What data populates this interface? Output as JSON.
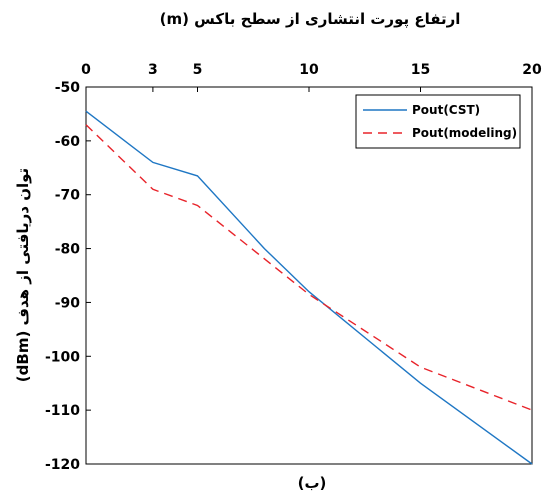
{
  "chart_data": {
    "type": "line",
    "xlabel": "ارتفاع پورت انتشاری از سطح باکس (m)",
    "ylabel": "توان دریافتی از هدف (dBm)",
    "caption": "(ب)",
    "x_axis_position": "top",
    "x_ticks": [
      0,
      3,
      5,
      10,
      15,
      20
    ],
    "y_ticks": [
      -50,
      -60,
      -70,
      -80,
      -90,
      -100,
      -110,
      -120
    ],
    "xlim": [
      0,
      20
    ],
    "ylim": [
      -120,
      -50
    ],
    "grid": false,
    "legend_position": "top-right",
    "series": [
      {
        "name": "Pout(CST)",
        "color": "#1f77c4",
        "style": "solid",
        "x": [
          0,
          3,
          5,
          8,
          10,
          15,
          20
        ],
        "y": [
          -54.5,
          -64,
          -66.5,
          -80,
          -88,
          -105,
          -120
        ]
      },
      {
        "name": "Pout(modeling)",
        "color": "#e8232a",
        "style": "dashed",
        "x": [
          0,
          3,
          5,
          10,
          15,
          20
        ],
        "y": [
          -57,
          -69,
          -72,
          -88.5,
          -102,
          -110
        ]
      }
    ]
  }
}
